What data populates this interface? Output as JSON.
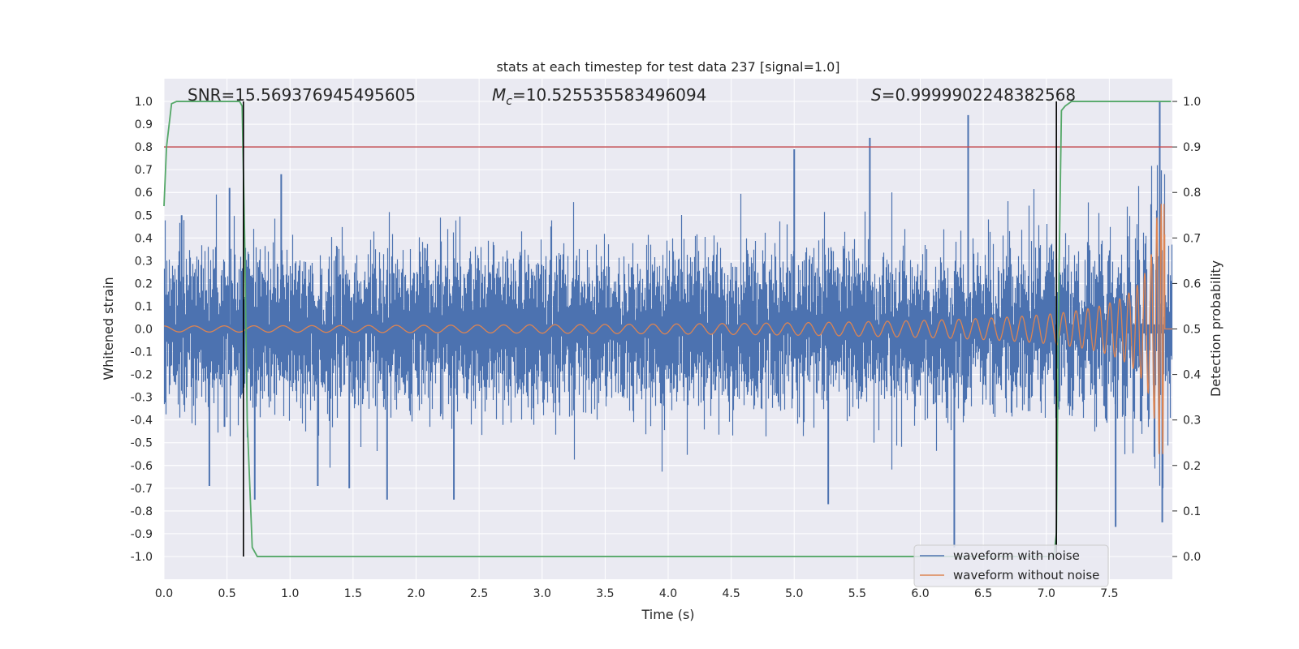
{
  "chart_data": {
    "type": "line",
    "title": "stats at each timestep for test data 237 [signal=1.0]",
    "xlabel": "Time (s)",
    "ylabel": "Whitened strain",
    "y2label": "Detection probability",
    "xlim": [
      0.0,
      8.0
    ],
    "ylim": [
      -1.1,
      1.1
    ],
    "y2lim": [
      -0.05,
      1.05
    ],
    "xticks": [
      "0.0",
      "0.5",
      "1.0",
      "1.5",
      "2.0",
      "2.5",
      "3.0",
      "3.5",
      "4.0",
      "4.5",
      "5.0",
      "5.5",
      "6.0",
      "6.5",
      "7.0",
      "7.5"
    ],
    "yticks": [
      "1.0",
      "0.9",
      "0.8",
      "0.7",
      "0.6",
      "0.5",
      "0.4",
      "0.3",
      "0.2",
      "0.1",
      "0.0",
      "-0.1",
      "-0.2",
      "-0.3",
      "-0.4",
      "-0.5",
      "-0.6",
      "-0.7",
      "-0.8",
      "-0.9",
      "-1.0"
    ],
    "y2ticks": [
      "1.0",
      "0.9",
      "0.8",
      "0.7",
      "0.6",
      "0.5",
      "0.4",
      "0.3",
      "0.2",
      "0.1",
      "0.0"
    ],
    "annotations": {
      "snr_prefix": "SNR=",
      "snr": "15.569376945495605",
      "mc_symbol": "M",
      "mc_sub": "c",
      "mc_eq": "=",
      "mc": "10.525535583496094",
      "s_symbol": "S",
      "s_eq": "=",
      "s": "0.9999902248382568"
    },
    "threshold_y2": 0.9,
    "detection_marks_x": [
      0.63,
      7.08
    ],
    "series": [
      {
        "name": "waveform with noise",
        "color": "#4c72b0",
        "kind": "noise",
        "amplitude_env": 0.45,
        "spikes": [
          {
            "x": 0.14,
            "y": 0.5
          },
          {
            "x": 0.36,
            "y": -0.69
          },
          {
            "x": 0.48,
            "y": -0.43
          },
          {
            "x": 0.52,
            "y": 0.62
          },
          {
            "x": 0.72,
            "y": -0.75
          },
          {
            "x": 0.93,
            "y": 0.68
          },
          {
            "x": 1.22,
            "y": -0.69
          },
          {
            "x": 1.47,
            "y": -0.7
          },
          {
            "x": 1.77,
            "y": -0.75
          },
          {
            "x": 2.3,
            "y": -0.75
          },
          {
            "x": 5.0,
            "y": 0.79
          },
          {
            "x": 5.27,
            "y": -0.77
          },
          {
            "x": 5.6,
            "y": 0.84
          },
          {
            "x": 6.27,
            "y": -0.96
          },
          {
            "x": 6.38,
            "y": 0.94
          },
          {
            "x": 7.55,
            "y": -0.87
          },
          {
            "x": 7.9,
            "y": 1.0
          },
          {
            "x": 7.92,
            "y": -0.85
          }
        ]
      },
      {
        "name": "waveform without noise",
        "color": "#dd8452",
        "kind": "chirp",
        "t_merge": 7.94,
        "amp_start": 0.013,
        "amp_peak": 0.55
      },
      {
        "name": "detection probability",
        "color": "#55a868",
        "axis": "y2",
        "x": [
          0.0,
          0.02,
          0.06,
          0.1,
          0.2,
          0.5,
          0.6,
          0.62,
          0.64,
          0.66,
          0.7,
          0.74,
          1.0,
          3.0,
          5.0,
          7.0,
          7.06,
          7.08,
          7.1,
          7.12,
          7.15,
          7.2,
          7.6,
          7.99
        ],
        "y": [
          0.77,
          0.9,
          0.995,
          1.0,
          1.0,
          1.0,
          1.0,
          0.99,
          0.7,
          0.3,
          0.02,
          0.0,
          0.0,
          0.0,
          0.0,
          0.0,
          0.0,
          0.05,
          0.6,
          0.98,
          0.99,
          1.0,
          1.0,
          1.0
        ]
      }
    ],
    "legend": [
      "waveform with noise",
      "waveform without noise"
    ],
    "legend_position": "lower-right",
    "grid": true
  }
}
